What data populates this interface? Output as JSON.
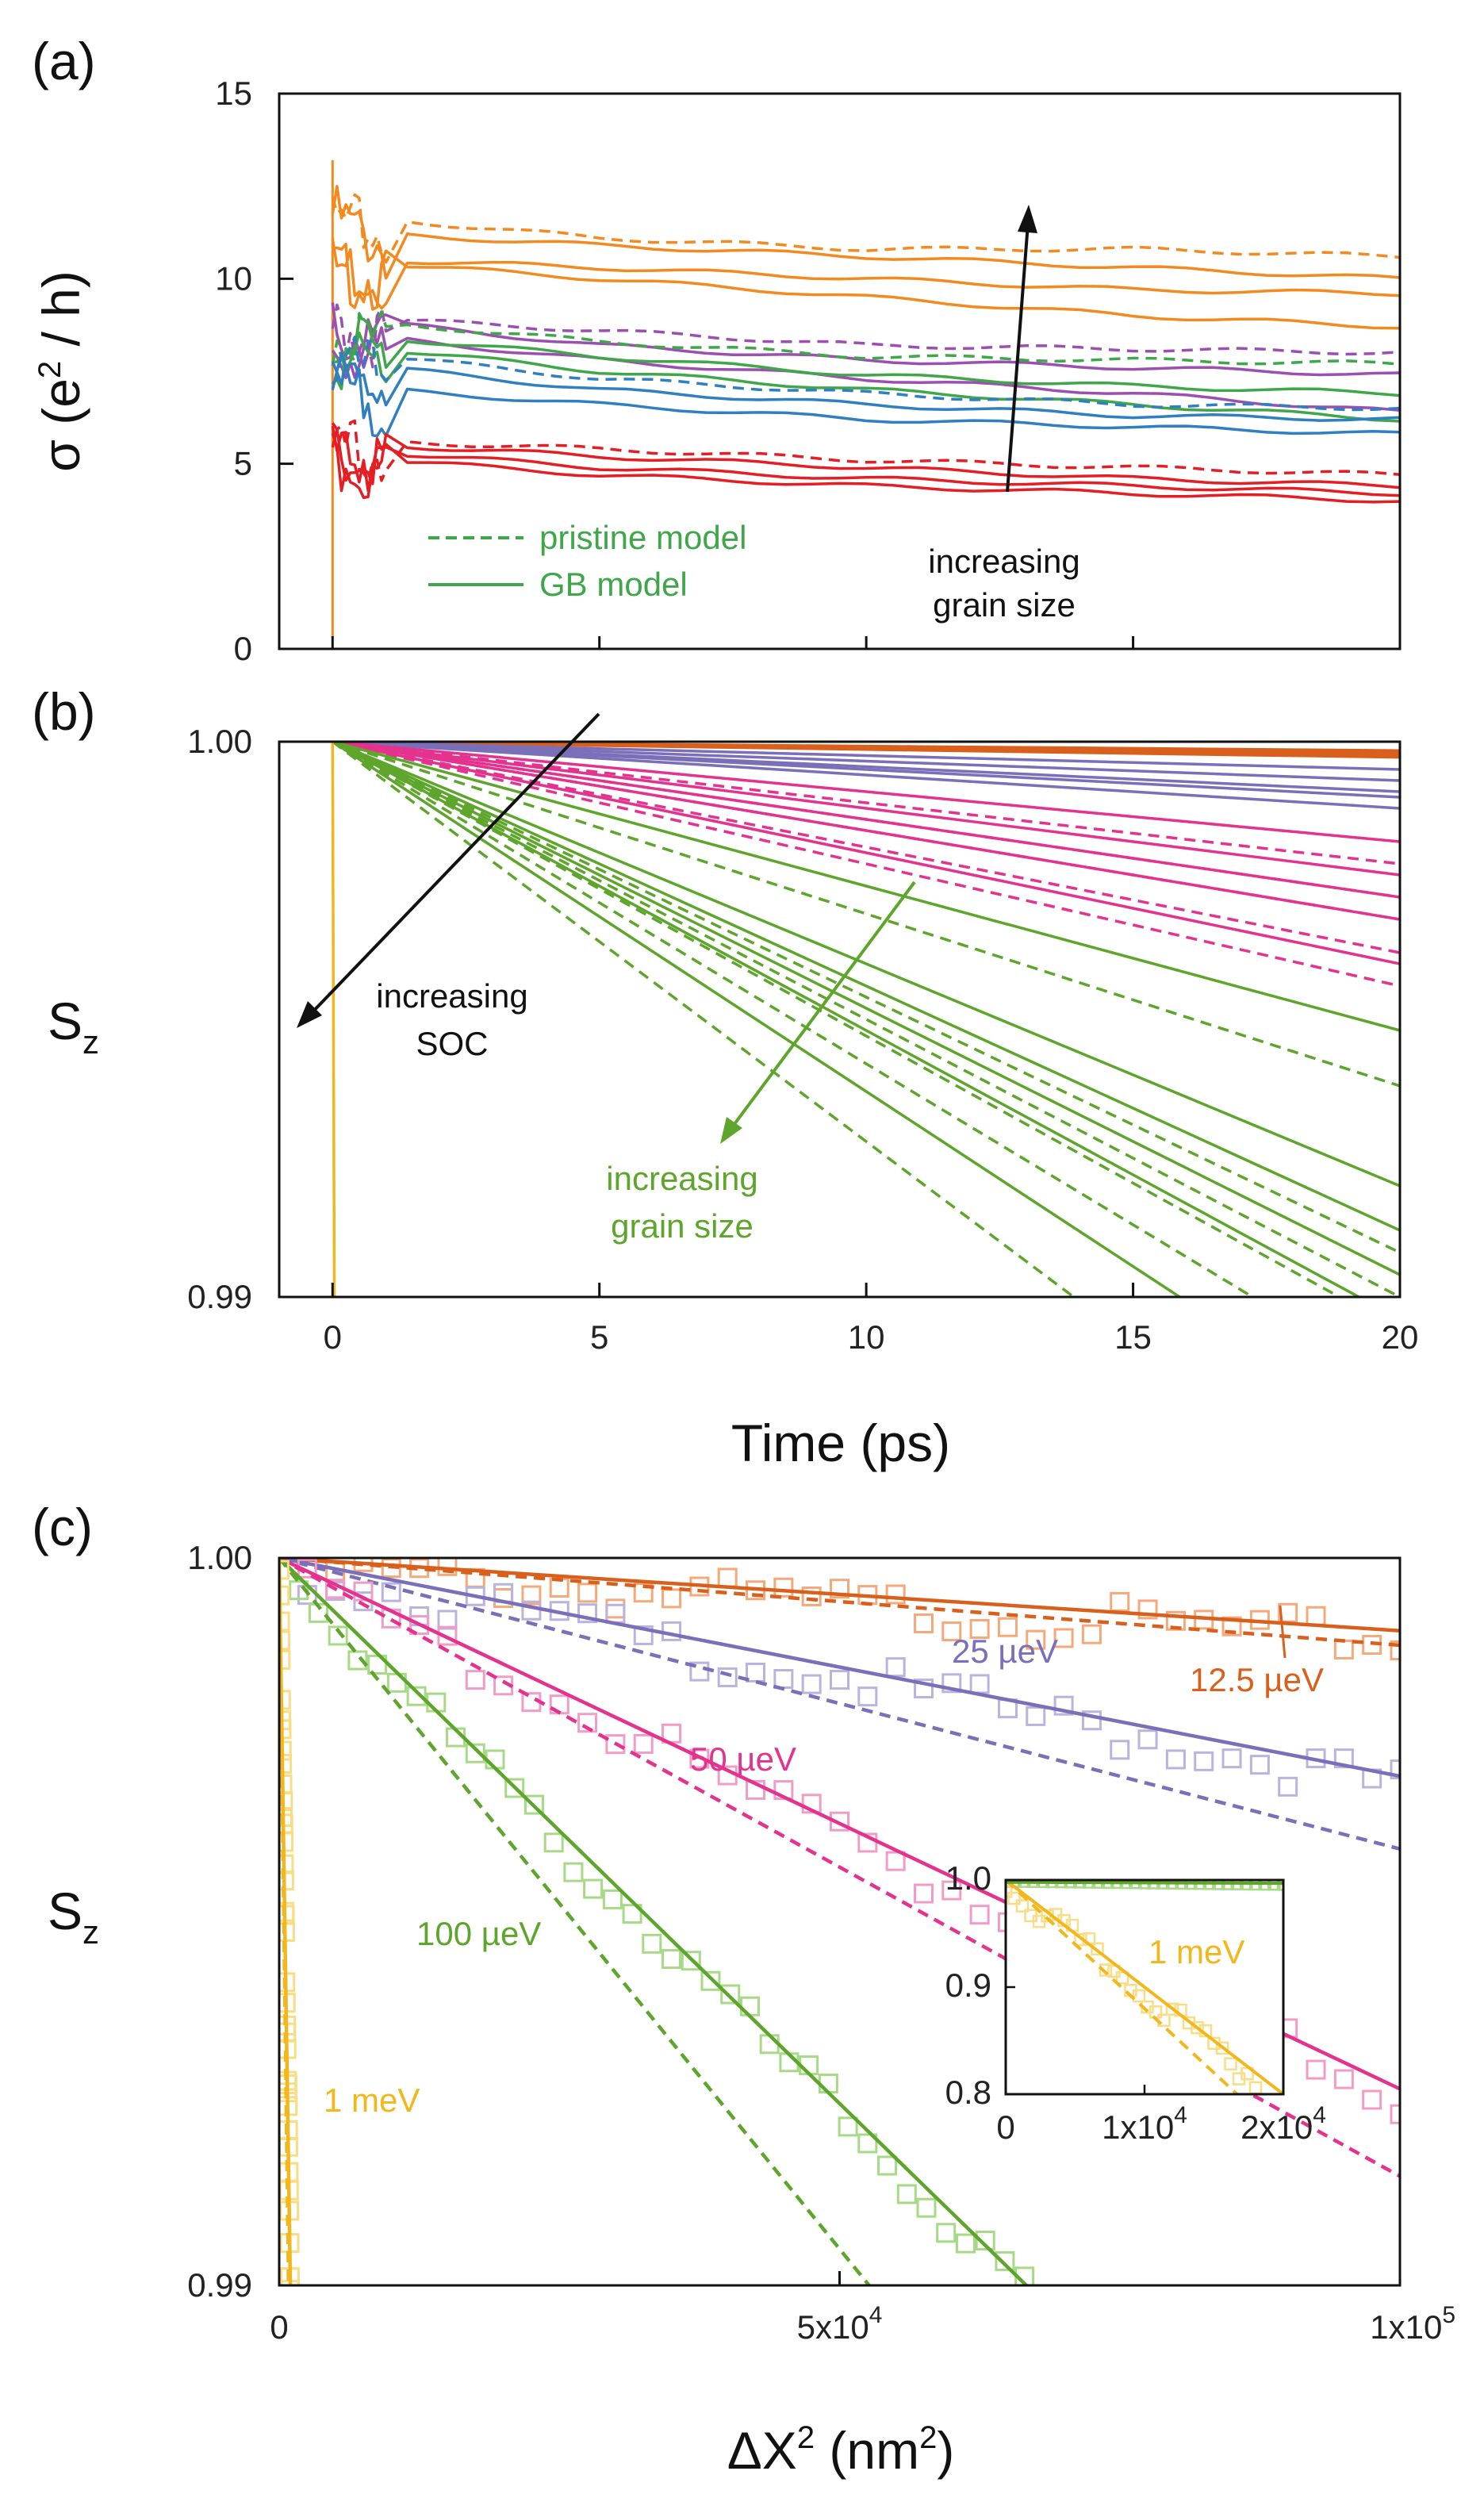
{
  "figure": {
    "colors": {
      "orange": "#f28a1f",
      "purple": "#9b4fb1",
      "green": "#3fa64a",
      "blue": "#2f7fc1",
      "red": "#e31e24",
      "soc_orange": "#d9601c",
      "soc_purple": "#7a6fb8",
      "soc_magenta": "#e3338e",
      "soc_green": "#5ea52c",
      "soc_yellow": "#f2b71c",
      "black": "#111111"
    }
  },
  "chart_data": [
    {
      "panel": "(a)",
      "type": "line",
      "xlabel": "",
      "ylabel": "σ (e² / h)",
      "ylabel_parts": {
        "sigma": "σ (e",
        "sup": "2",
        "rest": " / h)"
      },
      "xlim": [
        -1,
        20
      ],
      "ylim": [
        0,
        15
      ],
      "yticks": [
        0,
        5,
        10,
        15
      ],
      "legend": {
        "dashed": "pristine model",
        "solid": "GB model",
        "color": "#3fa64a"
      },
      "annotation": {
        "line1": "increasing",
        "line2": "grain size",
        "color": "#111111"
      },
      "series": [
        {
          "name": "orange GB 1",
          "color": "#f28a1f",
          "style": "solid",
          "start": 12.2,
          "x": [
            1,
            5,
            10,
            15,
            20
          ],
          "values": [
            11.2,
            10.9,
            10.6,
            10.3,
            10.0
          ]
        },
        {
          "name": "orange pristine",
          "color": "#f28a1f",
          "style": "dashed",
          "start": 12.0,
          "x": [
            1,
            5,
            10,
            15,
            20
          ],
          "values": [
            11.6,
            11.1,
            10.8,
            10.8,
            10.6
          ]
        },
        {
          "name": "orange GB 2",
          "color": "#f28a1f",
          "style": "solid",
          "start": 10.8,
          "x": [
            1,
            5,
            10,
            15,
            20
          ],
          "values": [
            10.5,
            10.3,
            10.0,
            9.7,
            9.6
          ]
        },
        {
          "name": "orange GB 3",
          "color": "#f28a1f",
          "style": "solid",
          "start": 10.6,
          "x": [
            1,
            5,
            10,
            15,
            20
          ],
          "values": [
            10.4,
            10.0,
            9.5,
            9.0,
            8.7
          ]
        },
        {
          "name": "purple pristine",
          "color": "#9b4fb1",
          "style": "dashed",
          "start": 9.1,
          "x": [
            1,
            5,
            10,
            15,
            20
          ],
          "values": [
            8.9,
            8.6,
            8.2,
            8.1,
            8.0
          ]
        },
        {
          "name": "purple GB 1",
          "color": "#9b4fb1",
          "style": "solid",
          "start": 9.0,
          "x": [
            1,
            5,
            10,
            15,
            20
          ],
          "values": [
            8.8,
            8.2,
            7.8,
            7.6,
            7.4
          ]
        },
        {
          "name": "purple GB 2",
          "color": "#9b4fb1",
          "style": "solid",
          "start": 8.6,
          "x": [
            1,
            5,
            10,
            15,
            20
          ],
          "values": [
            8.4,
            7.8,
            7.3,
            6.9,
            6.4
          ]
        },
        {
          "name": "green pristine",
          "color": "#3fa64a",
          "style": "dashed",
          "start": 8.9,
          "x": [
            1,
            5,
            10,
            15,
            20
          ],
          "values": [
            8.8,
            8.3,
            7.9,
            7.8,
            7.7
          ]
        },
        {
          "name": "green GB 1",
          "color": "#3fa64a",
          "style": "solid",
          "start": 8.6,
          "x": [
            1,
            5,
            10,
            15,
            20
          ],
          "values": [
            8.4,
            7.9,
            7.4,
            7.1,
            6.9
          ]
        },
        {
          "name": "green GB 2",
          "color": "#3fa64a",
          "style": "solid",
          "start": 8.3,
          "x": [
            1,
            5,
            10,
            15,
            20
          ],
          "values": [
            8.1,
            7.5,
            7.0,
            6.6,
            6.2
          ]
        },
        {
          "name": "blue pristine",
          "color": "#2f7fc1",
          "style": "dashed",
          "start": 8.1,
          "x": [
            1,
            5,
            10,
            15,
            20
          ],
          "values": [
            7.9,
            7.3,
            6.9,
            6.6,
            6.5
          ]
        },
        {
          "name": "blue GB 1",
          "color": "#2f7fc1",
          "style": "solid",
          "start": 7.7,
          "x": [
            1,
            5,
            10,
            15,
            20
          ],
          "values": [
            7.6,
            7.0,
            6.6,
            6.3,
            6.2
          ]
        },
        {
          "name": "blue GB 2",
          "color": "#2f7fc1",
          "style": "solid",
          "start": 7.4,
          "x": [
            1,
            5,
            10,
            15,
            20
          ],
          "values": [
            7.0,
            6.6,
            6.2,
            6.0,
            5.8
          ]
        },
        {
          "name": "red pristine",
          "color": "#e31e24",
          "style": "dashed",
          "start": 6.0,
          "x": [
            1,
            5,
            10,
            15,
            20
          ],
          "values": [
            5.6,
            5.4,
            5.1,
            4.9,
            4.7
          ]
        },
        {
          "name": "red GB 1",
          "color": "#e31e24",
          "style": "solid",
          "start": 5.8,
          "x": [
            1,
            5,
            10,
            15,
            20
          ],
          "values": [
            5.5,
            5.2,
            4.9,
            4.6,
            4.4
          ]
        },
        {
          "name": "red GB 2",
          "color": "#e31e24",
          "style": "solid",
          "start": 5.6,
          "x": [
            1,
            5,
            10,
            15,
            20
          ],
          "values": [
            5.3,
            4.9,
            4.6,
            4.4,
            4.2
          ]
        },
        {
          "name": "red GB 3",
          "color": "#e31e24",
          "style": "solid",
          "start": 5.4,
          "x": [
            1,
            5,
            10,
            15,
            20
          ],
          "values": [
            5.1,
            4.7,
            4.4,
            4.2,
            4.0
          ]
        }
      ]
    },
    {
      "panel": "(b)",
      "type": "line",
      "xlabel": "Time (ps)",
      "ylabel": "Sz",
      "ylabel_parts": {
        "main": "S",
        "sub": "z"
      },
      "xlim": [
        -1,
        20
      ],
      "ylim": [
        0.99,
        1.0
      ],
      "xticks": [
        0,
        5,
        10,
        15,
        20
      ],
      "yticks": [
        0.99,
        1.0
      ],
      "ytick_labels": [
        "0.99",
        "1.00"
      ],
      "annotations": [
        {
          "line1": "increasing",
          "line2": "SOC",
          "color": "#111111"
        },
        {
          "line1": "increasing",
          "line2": "grain size",
          "color": "#5ea52c"
        }
      ],
      "series": [
        {
          "name": "12.5 µeV",
          "color": "#d9601c",
          "style": "solid",
          "slopes_per_ps": [
            8e-06,
            1e-05,
            1.2e-05,
            1.4e-05
          ]
        },
        {
          "name": "25 µeV",
          "color": "#7a6fb8",
          "style": "solid",
          "slopes_per_ps": [
            2.5e-05,
            3.5e-05,
            4.5e-05,
            5e-05,
            6e-05
          ]
        },
        {
          "name": "50 µeV solid",
          "color": "#e3338e",
          "style": "solid",
          "slopes_per_ps": [
            9e-05,
            0.00012,
            0.00014,
            0.00016,
            0.0002
          ]
        },
        {
          "name": "50 µeV dashed",
          "color": "#e3338e",
          "style": "dashed",
          "slopes_per_ps": [
            0.00011,
            0.00014,
            0.00016,
            0.00019,
            0.00022
          ]
        },
        {
          "name": "100 µeV solid",
          "color": "#5ea52c",
          "style": "solid",
          "slopes_per_ps": [
            0.00026,
            0.0004,
            0.00044,
            0.00048,
            0.00052,
            0.00063
          ]
        },
        {
          "name": "100 µeV dashed",
          "color": "#5ea52c",
          "style": "dashed",
          "slopes_per_ps": [
            0.00031,
            0.00046,
            0.0005,
            0.00053,
            0.00058,
            0.00072
          ]
        },
        {
          "name": "1 meV",
          "color": "#f2b71c",
          "style": "solid",
          "slopes_per_ps": [
            0.3
          ]
        }
      ]
    },
    {
      "panel": "(c)",
      "type": "scatter",
      "xlabel": "ΔX² (nm²)",
      "xlabel_parts": {
        "delta": "ΔX",
        "sup1": "2",
        "unit": " (nm",
        "sup2": "2",
        "close": ")"
      },
      "ylabel": "Sz",
      "ylabel_parts": {
        "main": "S",
        "sub": "z"
      },
      "xlim": [
        0,
        100000
      ],
      "ylim": [
        0.99,
        1.0
      ],
      "xticks": [
        0,
        50000,
        100000
      ],
      "xtick_labels": [
        "0",
        "5x10",
        "1x10"
      ],
      "xtick_exps": [
        "",
        "4",
        "5"
      ],
      "yticks": [
        0.99,
        1.0
      ],
      "ytick_labels": [
        "0.99",
        "1.00"
      ],
      "series": [
        {
          "name": "12.5 µeV",
          "label": "12.5 µeV",
          "color": "#d9601c",
          "fit_slope": 1e-08,
          "dashed_slope": 1.2e-08
        },
        {
          "name": "25 µeV",
          "label": "25 µeV",
          "color": "#7a6fb8",
          "fit_slope": 3e-08,
          "dashed_slope": 4e-08
        },
        {
          "name": "50 µeV",
          "label": "50 µeV",
          "color": "#e3338e",
          "fit_slope": 7.3e-08,
          "dashed_slope": 8.5e-08
        },
        {
          "name": "100 µeV",
          "label": "100 µeV",
          "color": "#5ea52c",
          "fit_slope": 1.5e-07,
          "dashed_slope": 1.9e-07
        },
        {
          "name": "1 meV",
          "label": "1 meV",
          "color": "#f2b71c",
          "fit_slope": 1e-05,
          "dashed_slope": 1.2e-05
        }
      ],
      "inset": {
        "xlim": [
          0,
          20000
        ],
        "ylim": [
          0.8,
          1.0
        ],
        "xticks": [
          0,
          10000,
          20000
        ],
        "xtick_labels": [
          "0",
          "1x10",
          "2x10"
        ],
        "xtick_exps": [
          "",
          "4",
          "4"
        ],
        "yticks": [
          0.8,
          0.9,
          1.0
        ],
        "ytick_labels": [
          "0.8",
          "0.9",
          "1.0"
        ],
        "label": "1 meV",
        "series": [
          {
            "name": "1 meV",
            "color": "#f2b71c",
            "fit_slope": 1e-05,
            "dashed_slope": 1.2e-05
          },
          {
            "name": "100 µeV",
            "color": "#5ea52c",
            "fit_slope": 1.5e-07
          }
        ]
      }
    }
  ]
}
